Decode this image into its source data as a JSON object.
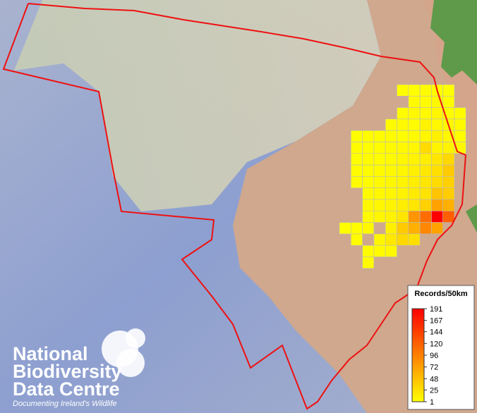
{
  "legend": {
    "title": "Records/50km",
    "ticks": [
      191,
      167,
      144,
      120,
      96,
      72,
      48,
      25,
      1
    ]
  },
  "grid": {
    "rows": [
      [
        null,
        null,
        null,
        null,
        null,
        3,
        2,
        4,
        3,
        2,
        null
      ],
      [
        null,
        null,
        null,
        null,
        null,
        null,
        5,
        4,
        6,
        3,
        null
      ],
      [
        null,
        null,
        null,
        null,
        null,
        4,
        6,
        5,
        8,
        4,
        3
      ],
      [
        null,
        null,
        null,
        null,
        4,
        5,
        3,
        10,
        6,
        7,
        5
      ],
      [
        null,
        2,
        3,
        3,
        4,
        2,
        5,
        8,
        12,
        6,
        4
      ],
      [
        null,
        3,
        2,
        4,
        5,
        6,
        8,
        28,
        9,
        10,
        6
      ],
      [
        null,
        2,
        3,
        3,
        5,
        7,
        10,
        14,
        20,
        30,
        null
      ],
      [
        null,
        3,
        4,
        5,
        6,
        8,
        12,
        18,
        25,
        40,
        null
      ],
      [
        null,
        4,
        3,
        5,
        7,
        9,
        14,
        20,
        28,
        35,
        null
      ],
      [
        null,
        null,
        5,
        6,
        8,
        10,
        16,
        22,
        45,
        38,
        null
      ],
      [
        null,
        null,
        6,
        7,
        9,
        14,
        20,
        35,
        70,
        60,
        null
      ],
      [
        null,
        null,
        5,
        8,
        10,
        20,
        80,
        110,
        191,
        120,
        null
      ],
      [
        2,
        3,
        6,
        null,
        12,
        40,
        60,
        90,
        70,
        null,
        null
      ],
      [
        null,
        4,
        null,
        8,
        18,
        30,
        25,
        null,
        null,
        null,
        null
      ],
      [
        null,
        null,
        3,
        5,
        6,
        null,
        null,
        null,
        null,
        null,
        null
      ],
      [
        null,
        null,
        4,
        null,
        null,
        null,
        null,
        null,
        null,
        null,
        null
      ]
    ]
  },
  "logo": {
    "lines": [
      "National",
      "Biodiversity",
      "Data Centre"
    ],
    "tagline": "Documenting Ireland's Wildlife"
  }
}
